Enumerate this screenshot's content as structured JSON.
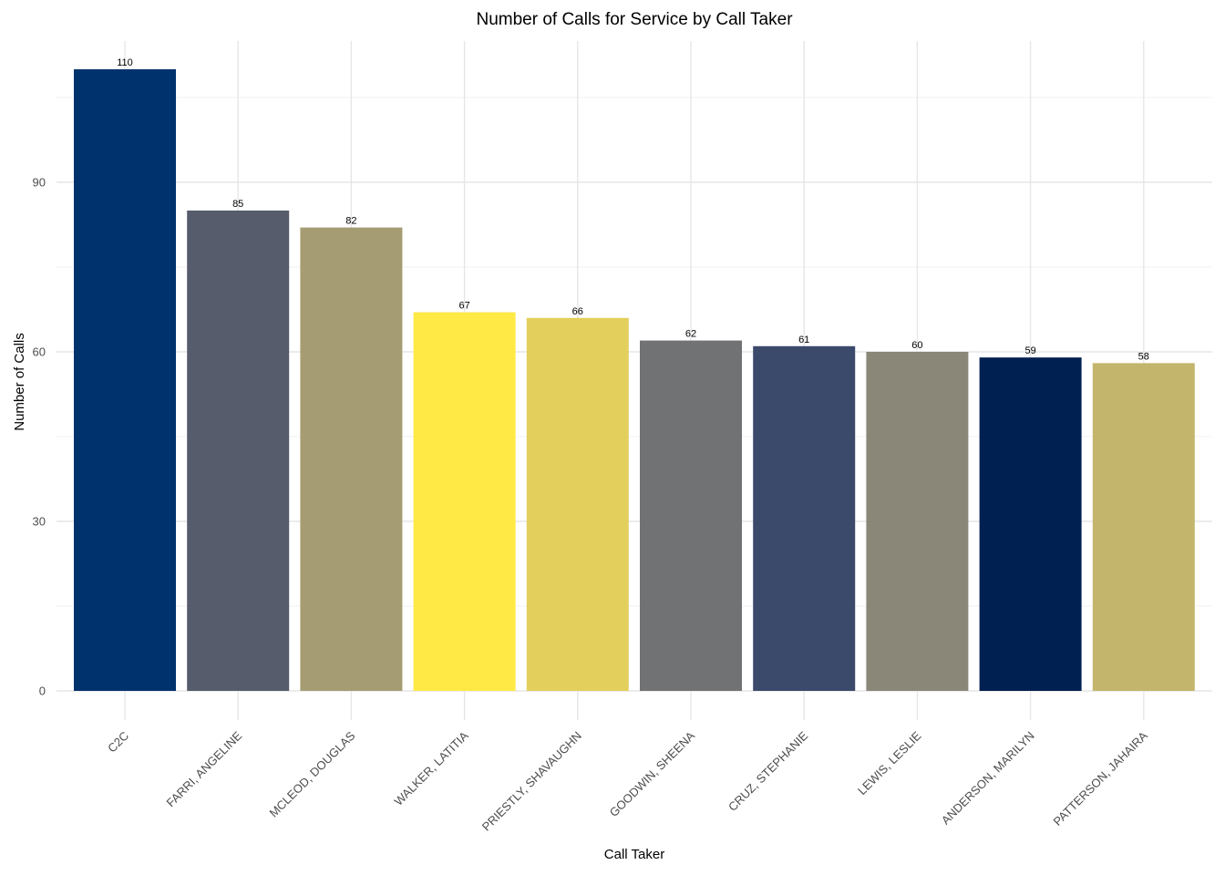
{
  "chart_data": {
    "type": "bar",
    "title": "Number of Calls for Service by Call Taker",
    "xlabel": "Call Taker",
    "ylabel": "Number of Calls",
    "categories": [
      "C2C",
      "FARRI, ANGELINE",
      "MCLEOD, DOUGLAS",
      "WALKER, LATITIA",
      "PRIESTLY, SHAVAUGHN",
      "GOODWIN, SHEENA",
      "CRUZ, STEPHANIE",
      "LEWIS, LESLIE",
      "ANDERSON, MARILYN",
      "PATTERSON, JAHAIRA"
    ],
    "values": [
      110,
      85,
      82,
      67,
      66,
      62,
      61,
      60,
      59,
      58
    ],
    "colors": [
      "#00326d",
      "#575c6c",
      "#a59c73",
      "#ffe945",
      "#e2cf5c",
      "#717274",
      "#3b496b",
      "#8a8779",
      "#002051",
      "#c4b56c"
    ],
    "ylim": [
      0,
      115
    ],
    "yticks": [
      0,
      30,
      60,
      90
    ],
    "grid": true,
    "legend": "none"
  }
}
